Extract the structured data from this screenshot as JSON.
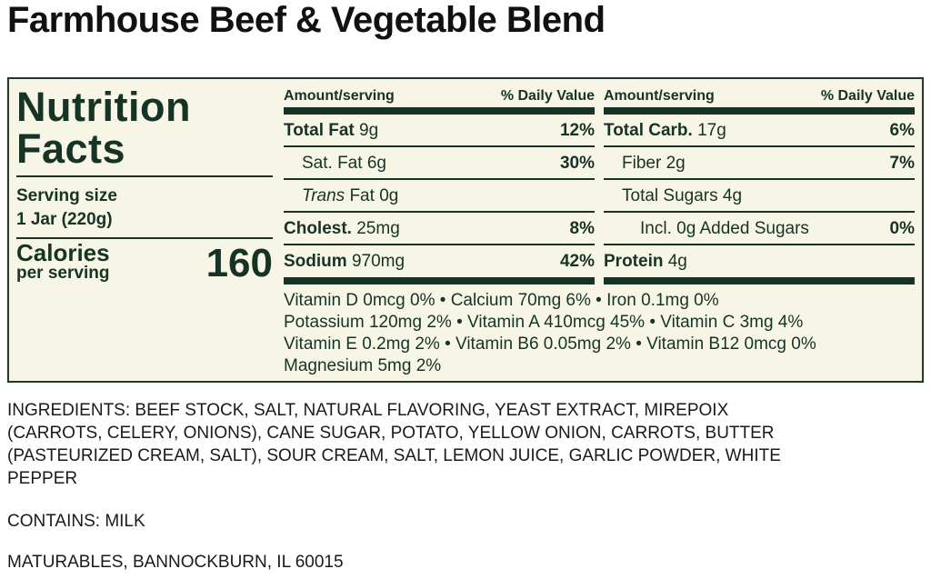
{
  "product_title": "Farmhouse Beef & Vegetable Blend",
  "label": {
    "title_line1": "Nutrition",
    "title_line2": "Facts",
    "serving_size_label": "Serving size",
    "serving_size_value": "1 Jar (220g)",
    "calories_label": "Calories",
    "calories_sub": "per serving",
    "calories_value": "160",
    "left_table": {
      "header_amount": "Amount/serving",
      "header_dv": "% Daily Value",
      "rows": [
        {
          "name": "Total Fat",
          "amount": "9g",
          "dv": "12%"
        },
        {
          "name": "Sat. Fat",
          "amount": "6g",
          "dv": "30%"
        },
        {
          "name": "Trans",
          "name_suffix": "Fat",
          "amount": "0g",
          "dv": ""
        },
        {
          "name": "Cholest.",
          "amount": "25mg",
          "dv": "8%"
        },
        {
          "name": "Sodium",
          "amount": "970mg",
          "dv": "42%"
        }
      ]
    },
    "right_table": {
      "header_amount": "Amount/serving",
      "header_dv": "% Daily Value",
      "rows": [
        {
          "name": "Total Carb.",
          "amount": "17g",
          "dv": "6%"
        },
        {
          "name": "Fiber",
          "amount": "2g",
          "dv": "7%"
        },
        {
          "name": "Total Sugars",
          "amount": "4g",
          "dv": ""
        },
        {
          "name": "Incl. 0g Added Sugars",
          "amount": "",
          "dv": "0%"
        },
        {
          "name": "Protein",
          "amount": "4g",
          "dv": ""
        }
      ]
    },
    "vitamins": [
      "Vitamin D 0mcg 0% • Calcium 70mg 6% • Iron 0.1mg 0%",
      "Potassium 120mg 2% • Vitamin A 410mcg 45% • Vitamin C 3mg 4%",
      "Vitamin E 0.2mg 2% • Vitamin B6 0.05mg 2% • Vitamin B12 0mcg 0%",
      "Magnesium 5mg 2%"
    ]
  },
  "ingredients_lines": [
    "INGREDIENTS: BEEF STOCK, SALT, NATURAL FLAVORING, YEAST EXTRACT, MIREPOIX",
    "(CARROTS, CELERY, ONIONS), CANE SUGAR, POTATO, YELLOW ONION, CARROTS, BUTTER",
    "(PASTEURIZED CREAM, SALT), SOUR CREAM, SALT, LEMON JUICE, GARLIC POWDER, WHITE",
    "PEPPER"
  ],
  "contains": "CONTAINS: MILK",
  "manufacturer": "MATURABLES, BANNOCKBURN, IL 60015",
  "colors": {
    "label_bg": "#f7f6e6",
    "label_ink": "#163326"
  }
}
